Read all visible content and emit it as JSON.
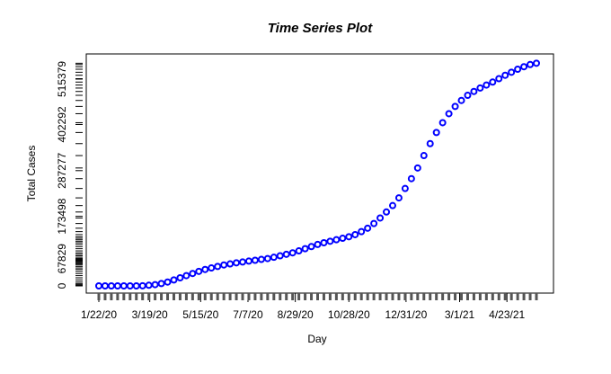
{
  "chart_data": {
    "type": "scatter",
    "title": "Time Series Plot",
    "x_label": "Day",
    "y_label": "Total Cases",
    "color": "#0000ff",
    "x": [
      "1/22/20",
      "1/29/20",
      "2/5/20",
      "2/12/20",
      "2/19/20",
      "2/26/20",
      "3/4/20",
      "3/11/20",
      "3/18/20",
      "3/25/20",
      "4/1/20",
      "4/8/20",
      "4/15/20",
      "4/22/20",
      "4/29/20",
      "5/6/20",
      "5/13/20",
      "5/20/20",
      "5/27/20",
      "6/3/20",
      "6/10/20",
      "6/17/20",
      "6/24/20",
      "7/1/20",
      "7/8/20",
      "7/15/20",
      "7/22/20",
      "7/29/20",
      "8/5/20",
      "8/12/20",
      "8/19/20",
      "8/26/20",
      "9/2/20",
      "9/9/20",
      "9/16/20",
      "9/23/20",
      "9/30/20",
      "10/7/20",
      "10/14/20",
      "10/21/20",
      "10/28/20",
      "11/4/20",
      "11/11/20",
      "11/18/20",
      "11/25/20",
      "12/2/20",
      "12/9/20",
      "12/16/20",
      "12/23/20",
      "12/30/20",
      "1/6/21",
      "1/13/21",
      "1/20/21",
      "1/27/21",
      "2/3/21",
      "2/10/21",
      "2/17/21",
      "2/24/21",
      "3/3/21",
      "3/10/21",
      "3/17/21",
      "3/24/21",
      "3/31/21",
      "4/7/21",
      "4/14/21",
      "4/21/21",
      "4/28/21",
      "5/5/21",
      "5/12/21",
      "5/19/21",
      "5/26/21"
    ],
    "values": [
      0,
      0,
      0,
      0,
      0,
      0,
      0,
      320,
      1600,
      3200,
      5900,
      9600,
      14900,
      20200,
      25600,
      30900,
      36200,
      41000,
      44700,
      48500,
      52200,
      54800,
      57500,
      59600,
      61800,
      63900,
      66000,
      68200,
      71400,
      75100,
      78800,
      82500,
      87300,
      92700,
      98000,
      103300,
      107600,
      111300,
      115000,
      118700,
      122500,
      127800,
      135300,
      143800,
      155500,
      169300,
      184200,
      200200,
      219400,
      242800,
      267300,
      293900,
      324800,
      354600,
      382300,
      406800,
      429200,
      447300,
      462200,
      475000,
      484600,
      493100,
      500600,
      508000,
      516500,
      525000,
      532500,
      540000,
      546300,
      551700,
      554900
    ],
    "xticks": [
      "1/22/20",
      "3/19/20",
      "5/15/20",
      "7/7/20",
      "8/29/20",
      "10/28/20",
      "12/31/20",
      "3/1/21",
      "4/23/21"
    ],
    "ylim": [
      -17900,
      578100
    ],
    "yticks": [
      0,
      67829,
      173498,
      287277,
      402292,
      515379
    ]
  }
}
